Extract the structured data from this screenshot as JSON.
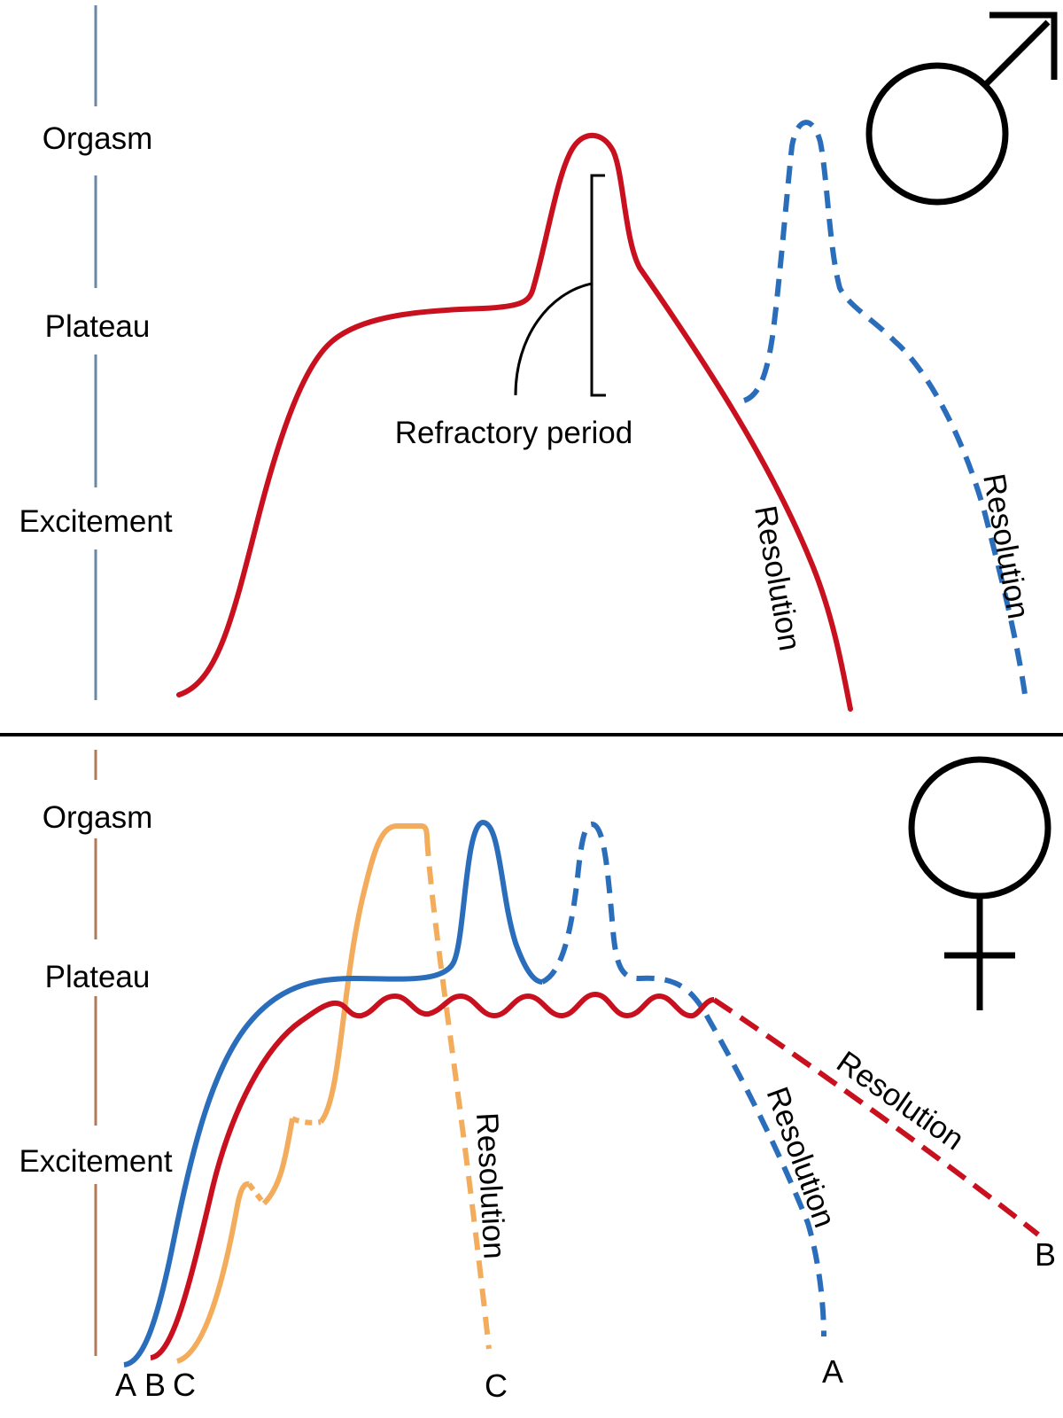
{
  "male_panel": {
    "axis_labels": [
      "Orgasm",
      "Plateau",
      "Excitement"
    ],
    "refractory_label": "Refractory period",
    "resolution_labels": [
      "Resolution",
      "Resolution"
    ],
    "symbol": "male-symbol"
  },
  "female_panel": {
    "axis_labels": [
      "Orgasm",
      "Plateau",
      "Excitement"
    ],
    "resolution_labels": [
      "Resolution",
      "Resolution",
      "Resolution"
    ],
    "start_labels": [
      "A",
      "B",
      "C"
    ],
    "end_labels": [
      "C",
      "A",
      "B"
    ],
    "symbol": "female-symbol"
  },
  "colors": {
    "red": "#c8101e",
    "blue": "#2a6ebb",
    "orange": "#f3ac5b",
    "male_axis": "#6b87a6",
    "female_axis": "#b07a58",
    "ink": "#000000"
  }
}
